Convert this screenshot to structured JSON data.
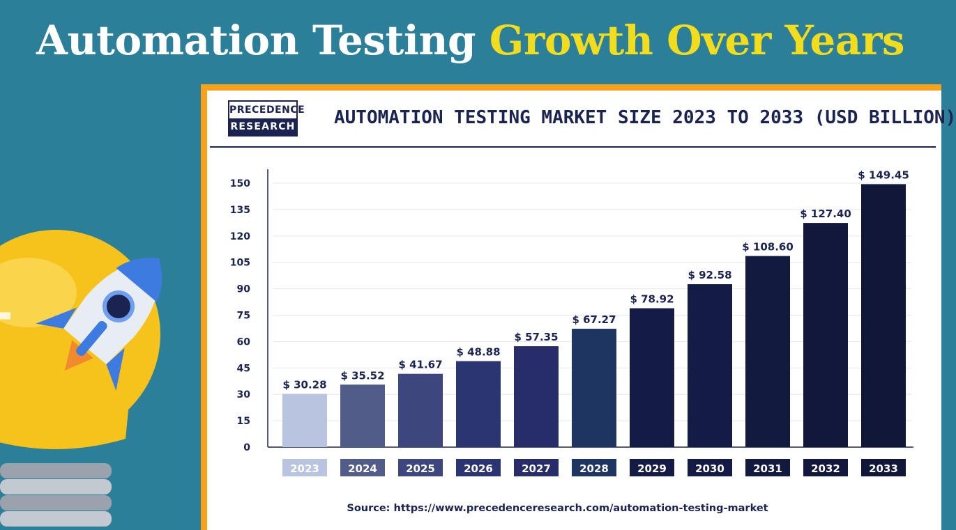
{
  "headline": {
    "white_part": "Automation Testing",
    "yellow_part": "Growth Over Years"
  },
  "logo": {
    "line1": "PRECEDENCE",
    "line2": "RESEARCH"
  },
  "chart_title": "AUTOMATION TESTING MARKET SIZE 2023 TO 2033 (USD BILLION)",
  "source": "Source: https://www.precedenceresearch.com/automation-testing-market",
  "colors": {
    "background": "#2b7f98",
    "headline_accent": "#f2dc1e",
    "frame": "#f8a21c",
    "navy": "#1b2350"
  },
  "chart_data": {
    "type": "bar",
    "title": "AUTOMATION TESTING MARKET SIZE 2023 TO 2033 (USD BILLION)",
    "xlabel": "",
    "ylabel": "",
    "categories": [
      "2023",
      "2024",
      "2025",
      "2026",
      "2027",
      "2028",
      "2029",
      "2030",
      "2031",
      "2032",
      "2033"
    ],
    "values": [
      30.28,
      35.52,
      41.67,
      48.88,
      57.35,
      67.27,
      78.92,
      92.58,
      108.6,
      127.4,
      149.45
    ],
    "data_labels": [
      "$ 30.28",
      "$ 35.52",
      "$ 41.67",
      "$ 48.88",
      "$ 57.35",
      "$ 67.27",
      "$ 78.92",
      "$ 92.58",
      "$ 108.60",
      "$ 127.40",
      "$ 149.45"
    ],
    "bar_colors": [
      "#b8c4e0",
      "#525c88",
      "#3d477d",
      "#2b3572",
      "#262d68",
      "#1f3561",
      "#141b44",
      "#141b44",
      "#131a40",
      "#12183c",
      "#111738"
    ],
    "yticks": [
      0,
      15,
      30,
      45,
      60,
      75,
      90,
      105,
      120,
      135,
      150
    ],
    "ylim": [
      0,
      150
    ],
    "grid": true,
    "legend": "none"
  }
}
